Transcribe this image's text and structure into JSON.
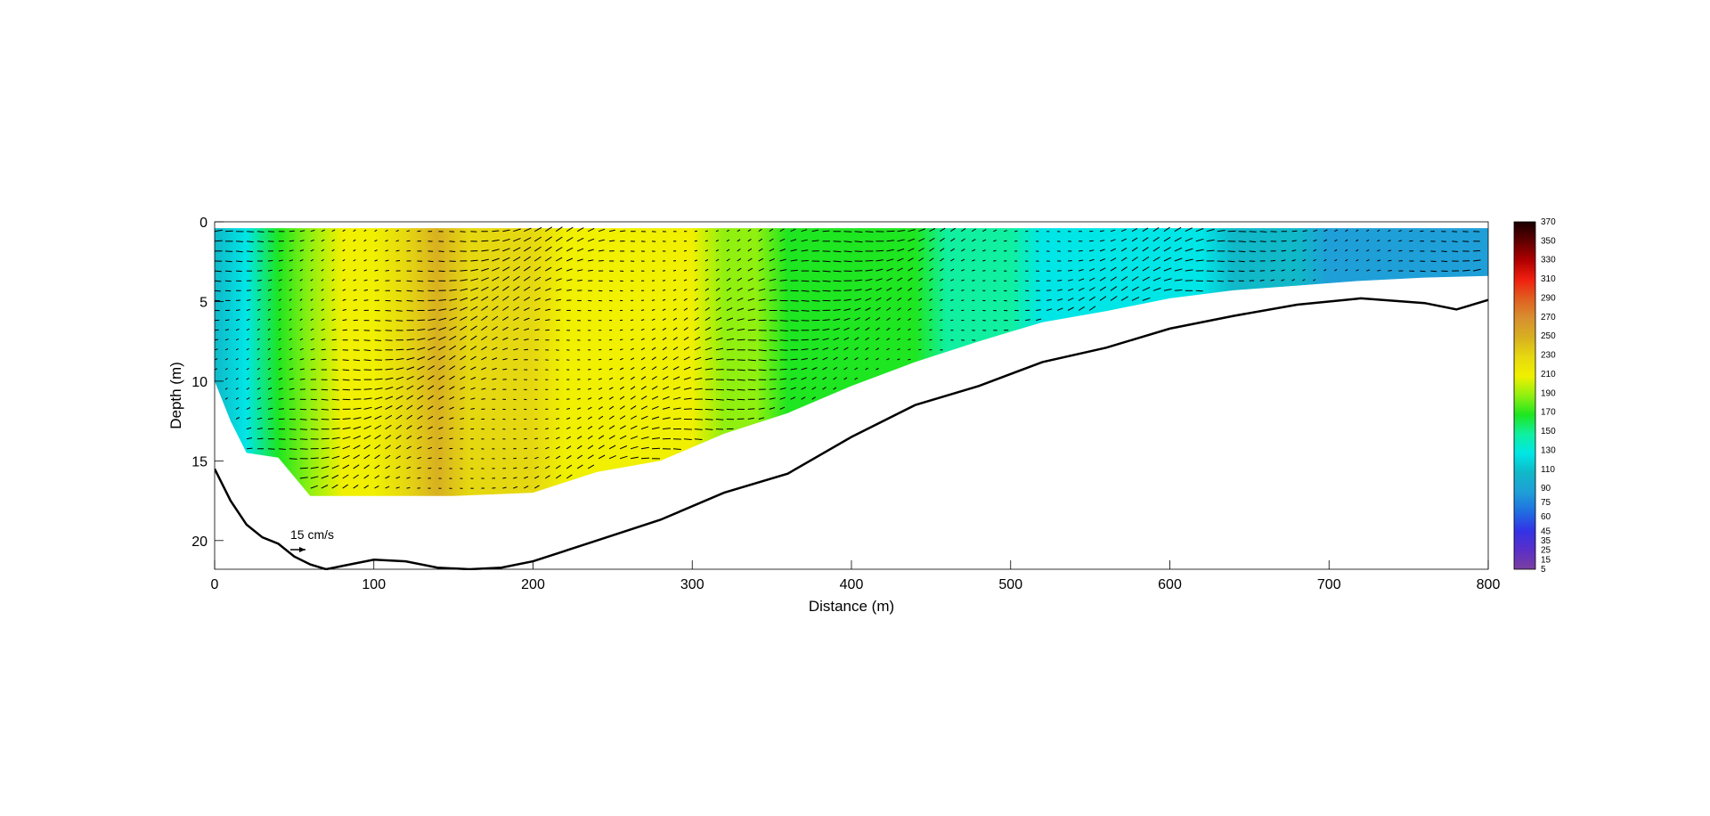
{
  "chart_data": {
    "type": "heatmap",
    "title": "",
    "xlabel": "Distance (m)",
    "ylabel": "Depth (m)",
    "xlim": [
      0,
      800
    ],
    "ylim": [
      0,
      21.8
    ],
    "y_inverted": true,
    "x_ticks": [
      0,
      100,
      200,
      300,
      400,
      500,
      600,
      700,
      800
    ],
    "y_ticks": [
      0,
      5,
      10,
      15,
      20
    ],
    "scale_arrow_label": "15 cm/s",
    "colorbar": {
      "ticks": [
        5,
        15,
        25,
        35,
        45,
        60,
        75,
        90,
        110,
        130,
        150,
        170,
        190,
        210,
        230,
        250,
        270,
        290,
        310,
        330,
        350,
        370
      ],
      "colors": [
        "#7a3fa0",
        "#5a2fc8",
        "#3333e6",
        "#1f6fe0",
        "#1f9fd8",
        "#10b8c8",
        "#00e6e6",
        "#10f0a0",
        "#1ee620",
        "#90f010",
        "#f0f000",
        "#e6d810",
        "#d8b020",
        "#d89030",
        "#e06020",
        "#f02010",
        "#b00000",
        "#600000",
        "#1a0000"
      ]
    },
    "column_x": [
      0,
      20,
      40,
      60,
      80,
      100,
      120,
      140,
      160,
      180,
      200,
      220,
      240,
      260,
      280,
      300,
      320,
      340,
      360,
      380,
      400,
      420,
      440,
      460,
      480,
      500,
      520,
      540,
      560,
      580,
      600,
      620,
      640,
      660,
      680,
      700,
      720,
      740,
      760,
      780,
      800
    ],
    "column_speed": [
      110,
      130,
      170,
      185,
      205,
      215,
      225,
      245,
      235,
      225,
      220,
      215,
      210,
      205,
      205,
      200,
      185,
      180,
      175,
      170,
      170,
      160,
      160,
      155,
      150,
      140,
      135,
      130,
      130,
      125,
      120,
      120,
      115,
      110,
      100,
      90,
      85,
      85,
      80,
      80,
      80
    ],
    "data_bottom_depth": [
      [
        0,
        10
      ],
      [
        10,
        12.5
      ],
      [
        20,
        14.5
      ],
      [
        40,
        14.8
      ],
      [
        60,
        17.2
      ],
      [
        100,
        17.2
      ],
      [
        150,
        17.2
      ],
      [
        200,
        17.0
      ],
      [
        240,
        15.7
      ],
      [
        280,
        15.0
      ],
      [
        320,
        13.3
      ],
      [
        360,
        12.0
      ],
      [
        400,
        10.3
      ],
      [
        440,
        8.8
      ],
      [
        480,
        7.5
      ],
      [
        520,
        6.3
      ],
      [
        560,
        5.6
      ],
      [
        600,
        4.8
      ],
      [
        640,
        4.3
      ],
      [
        680,
        4.0
      ],
      [
        720,
        3.7
      ],
      [
        760,
        3.5
      ],
      [
        800,
        3.4
      ]
    ],
    "bathymetry_depth": [
      [
        0,
        15.5
      ],
      [
        10,
        17.5
      ],
      [
        20,
        19.0
      ],
      [
        30,
        19.8
      ],
      [
        40,
        20.2
      ],
      [
        50,
        21.0
      ],
      [
        60,
        21.5
      ],
      [
        70,
        21.8
      ],
      [
        80,
        21.6
      ],
      [
        100,
        21.2
      ],
      [
        120,
        21.3
      ],
      [
        140,
        21.7
      ],
      [
        160,
        21.8
      ],
      [
        180,
        21.7
      ],
      [
        200,
        21.3
      ],
      [
        240,
        20.0
      ],
      [
        280,
        18.7
      ],
      [
        320,
        17.0
      ],
      [
        360,
        15.8
      ],
      [
        400,
        13.5
      ],
      [
        440,
        11.5
      ],
      [
        480,
        10.3
      ],
      [
        520,
        8.8
      ],
      [
        560,
        7.9
      ],
      [
        600,
        6.7
      ],
      [
        640,
        5.9
      ],
      [
        680,
        5.2
      ],
      [
        720,
        4.8
      ],
      [
        760,
        5.1
      ],
      [
        780,
        5.5
      ],
      [
        800,
        4.9
      ]
    ]
  }
}
